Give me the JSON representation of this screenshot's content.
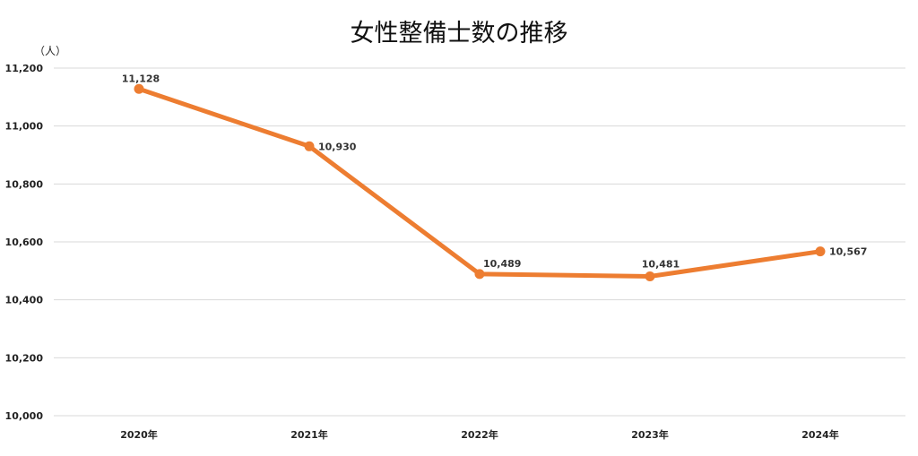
{
  "chart_data": {
    "type": "line",
    "title": "女性整備士数の推移",
    "unit_label": "（人）",
    "categories": [
      "2020年",
      "2021年",
      "2022年",
      "2023年",
      "2024年"
    ],
    "series": [
      {
        "values": [
          11128,
          10930,
          10489,
          10481,
          10567
        ],
        "color": "#ED7D31"
      }
    ],
    "data_labels": [
      "11,128",
      "10,930",
      "10,489",
      "10,481",
      "10,567"
    ],
    "ylim": [
      10000,
      11200
    ],
    "yticks": [
      10000,
      10200,
      10400,
      10600,
      10800,
      11000,
      11200
    ],
    "ytick_labels": [
      "10,000",
      "10,200",
      "10,400",
      "10,600",
      "10,800",
      "11,000",
      "11,200"
    ],
    "grid": true,
    "legend": "none"
  }
}
